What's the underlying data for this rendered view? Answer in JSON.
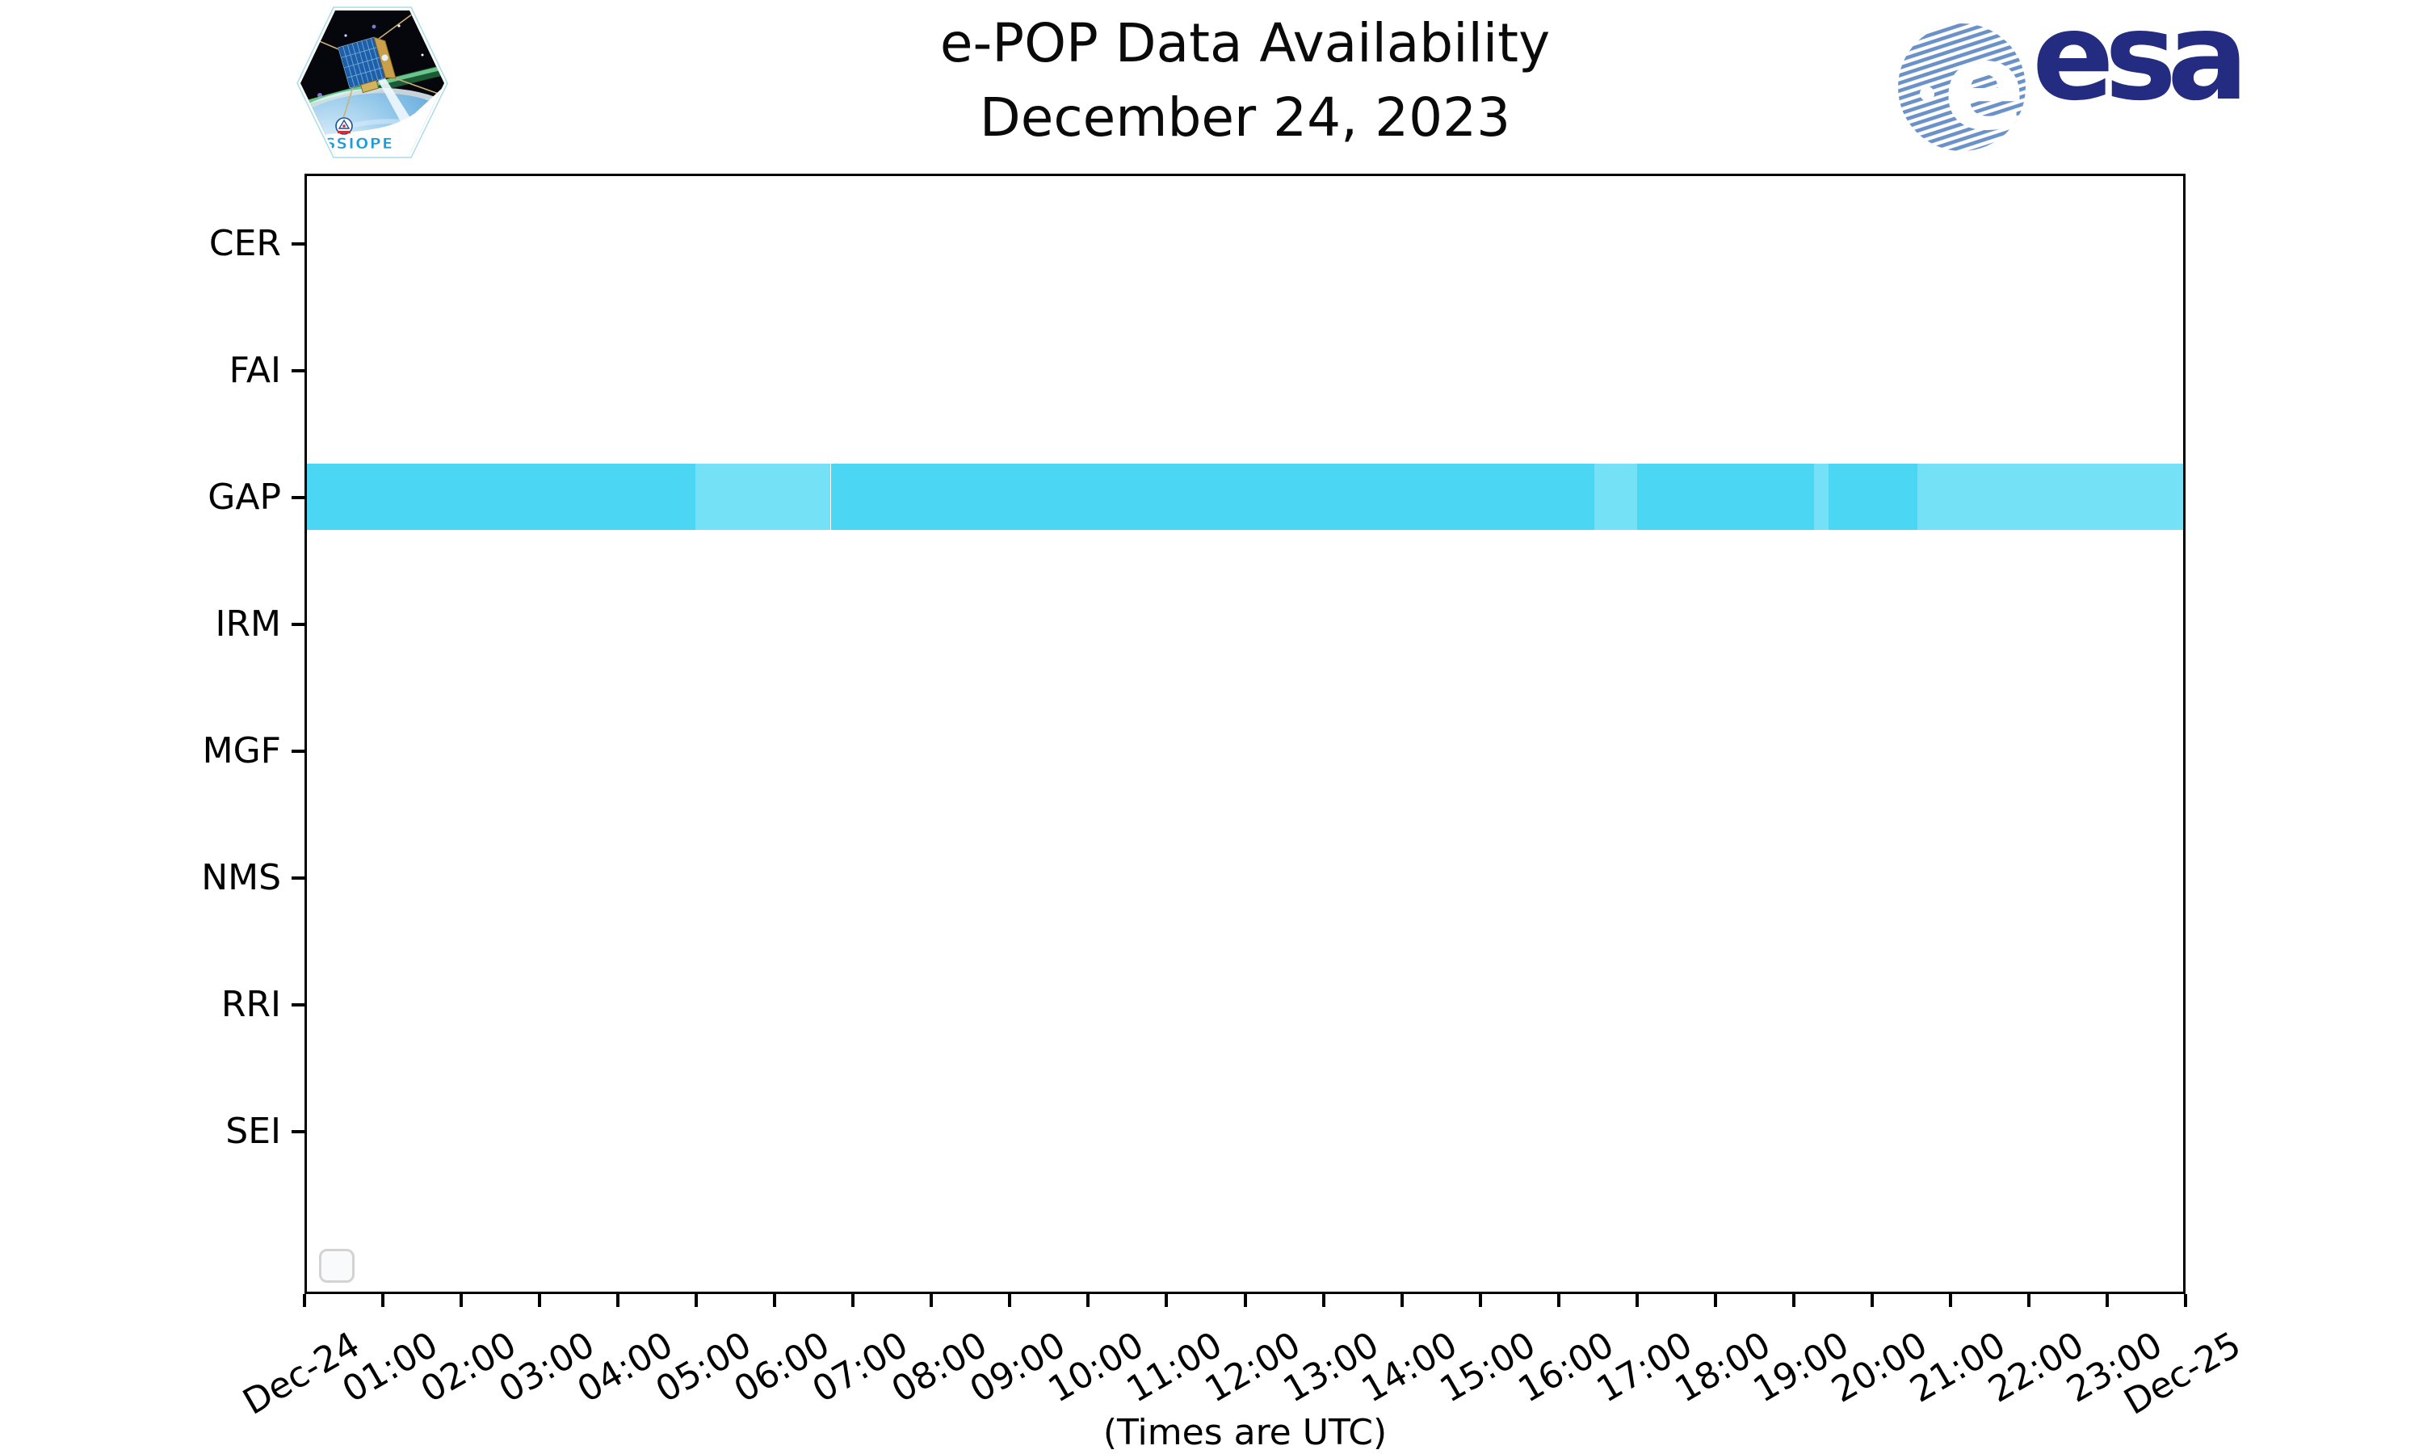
{
  "header": {
    "title_line1": "e-POP Data Availability",
    "title_line2": "December 24, 2023"
  },
  "branding": {
    "cassiope_label": "CASSIOPE",
    "esa_wordmark": "esa"
  },
  "chart_data": {
    "type": "timeline-availability",
    "title": "e-POP Data Availability",
    "subtitle": "December 24, 2023",
    "y_axis": {
      "tick_labels": [
        "CER",
        "FAI",
        "GAP",
        "IRM",
        "MGF",
        "NMS",
        "RRI",
        "SEI"
      ]
    },
    "x_axis": {
      "label": "(Times are UTC)",
      "range_hours": [
        0,
        24
      ],
      "tick_labels": [
        "Dec-24",
        "01:00",
        "02:00",
        "03:00",
        "04:00",
        "05:00",
        "06:00",
        "07:00",
        "08:00",
        "09:00",
        "10:00",
        "11:00",
        "12:00",
        "13:00",
        "14:00",
        "15:00",
        "16:00",
        "17:00",
        "18:00",
        "19:00",
        "20:00",
        "21:00",
        "22:00",
        "23:00",
        "Dec-25"
      ]
    },
    "colors": {
      "solid": "#4bd7f3",
      "light": "#74e1f7"
    },
    "availability": [
      {
        "instrument": "GAP",
        "segments": [
          {
            "start": "00:00",
            "end": "04:58",
            "start_h": 0.0,
            "end_h": 4.97,
            "shade": "solid"
          },
          {
            "start": "04:58",
            "end": "06:42",
            "start_h": 4.97,
            "end_h": 6.7,
            "shade": "light"
          },
          {
            "start": "06:42",
            "end": "16:28",
            "start_h": 6.7,
            "end_h": 16.47,
            "shade": "solid"
          },
          {
            "start": "16:28",
            "end": "17:01",
            "start_h": 16.47,
            "end_h": 17.02,
            "shade": "light"
          },
          {
            "start": "17:01",
            "end": "19:17",
            "start_h": 17.02,
            "end_h": 19.28,
            "shade": "solid"
          },
          {
            "start": "19:17",
            "end": "19:28",
            "start_h": 19.28,
            "end_h": 19.46,
            "shade": "light"
          },
          {
            "start": "19:28",
            "end": "20:36",
            "start_h": 19.46,
            "end_h": 20.6,
            "shade": "solid"
          },
          {
            "start": "20:36",
            "end": "24:00",
            "start_h": 20.6,
            "end_h": 24.0,
            "shade": "light"
          }
        ]
      },
      {
        "instrument": "CER",
        "segments": []
      },
      {
        "instrument": "FAI",
        "segments": []
      },
      {
        "instrument": "IRM",
        "segments": []
      },
      {
        "instrument": "MGF",
        "segments": []
      },
      {
        "instrument": "NMS",
        "segments": []
      },
      {
        "instrument": "RRI",
        "segments": []
      },
      {
        "instrument": "SEI",
        "segments": []
      }
    ],
    "legend": {
      "visible": true,
      "entries": []
    }
  }
}
